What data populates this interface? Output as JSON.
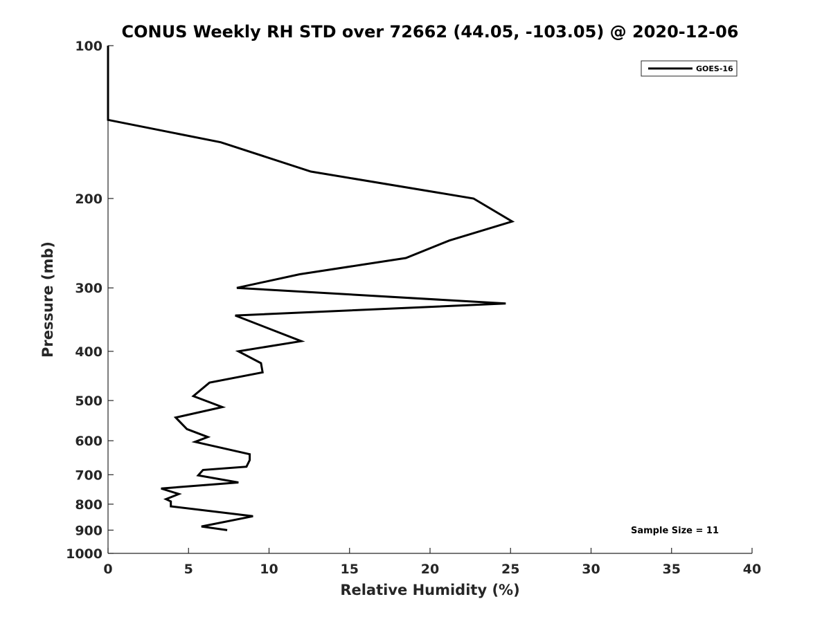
{
  "chart_data": {
    "type": "line",
    "title": "CONUS Weekly RH STD over 72662 (44.05, -103.05) @ 2020-12-06",
    "xlabel": "Relative Humidity (%)",
    "ylabel": "Pressure (mb)",
    "xlim": [
      0,
      40
    ],
    "ylim": [
      100,
      1000
    ],
    "y_scale": "log",
    "y_reversed": true,
    "x_ticks": [
      "0",
      "5",
      "10",
      "15",
      "20",
      "25",
      "30",
      "35",
      "40"
    ],
    "y_ticks": [
      "100",
      "200",
      "300",
      "400",
      "500",
      "600",
      "700",
      "800",
      "900",
      "1000"
    ],
    "legend_position": "top-right",
    "annotation": "Sample Size = 11",
    "series": [
      {
        "name": "GOES-16",
        "color": "#000000",
        "x": [
          0,
          0,
          7.0,
          12.6,
          22.7,
          25.1,
          21.2,
          18.5,
          11.9,
          8.0,
          24.7,
          7.9,
          12.0,
          8.1,
          9.5,
          9.6,
          6.3,
          5.3,
          7.1,
          4.2,
          4.9,
          6.2,
          5.4,
          8.8,
          8.8,
          8.6,
          5.9,
          5.6,
          8.1,
          3.3,
          4.4,
          3.6,
          3.9,
          3.9,
          9.0,
          5.8,
          7.4
        ],
        "y": [
          100,
          140,
          155,
          177,
          200,
          222,
          242,
          262,
          282,
          300,
          322,
          340,
          382,
          400,
          422,
          440,
          461,
          490,
          515,
          540,
          569,
          590,
          603,
          638,
          655,
          675,
          685,
          702,
          725,
          745,
          764,
          782,
          790,
          808,
          845,
          885,
          900
        ]
      }
    ]
  }
}
